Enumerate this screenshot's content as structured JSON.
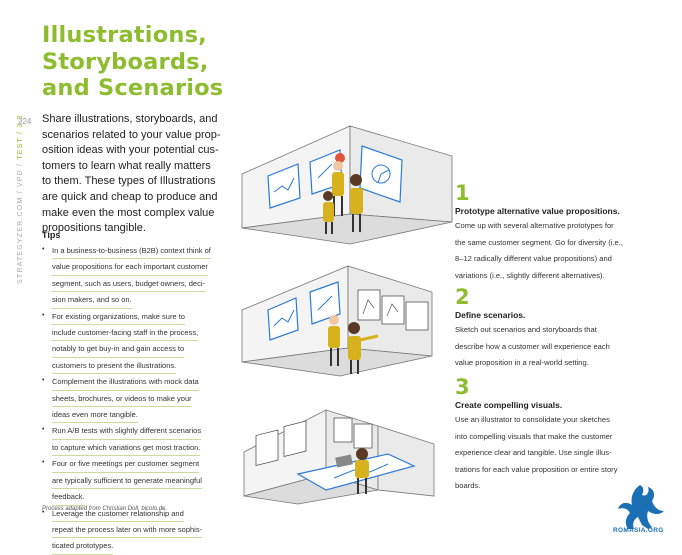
{
  "title_lines": [
    "Illustrations,",
    "Storyboards,",
    "and Scenarios"
  ],
  "page_number": "224",
  "side_label": {
    "prefix": "STRATEGYZER.COM / VPD / ",
    "highlight": "TEST / 3.3"
  },
  "intro_lines": [
    "Share illustrations, storyboards, and",
    "scenarios related to your value prop-",
    "osition ideas with your potential cus-",
    "tomers to learn what really matters",
    "to them. These types of Illustrations",
    "are quick and cheap to produce and",
    "make even the most complex value",
    "propositions tangible."
  ],
  "tips_title": "Tips",
  "tips": [
    [
      "In a business-to-business (B2B) context think of",
      "value propositions for each important customer",
      "segment, such as users, budget owners, deci-",
      "sion makers, and so on."
    ],
    [
      "For existing organizations, make sure to",
      "include customer-facing staff in the process,",
      "notably to get buy-in and gain access to",
      "customers to present the illustrations."
    ],
    [
      "Complement the illustrations with mock data",
      "sheets, brochures, or videos to make your",
      "ideas even more tangible."
    ],
    [
      "Run A/B tests with slightly different scenarios",
      "to capture which variations get most traction."
    ],
    [
      "Four or five meetings per customer segment",
      "are typically sufficient to generate meaningful",
      "feedback."
    ],
    [
      "Leverage the customer relationship and",
      "repeat the process later on with more sophis-",
      "ticated prototypes."
    ]
  ],
  "footnote": "Process adapted from Christian Doll, bicolo.de.",
  "steps": [
    {
      "number": "1",
      "heading": "Prototype alternative value propositions.",
      "body_lines": [
        "Come up with several alternative prototypes for",
        "the same customer segment. Go for diversity (i.e.,",
        "8–12 radically different value propositions) and",
        "variations (i.e., slightly different alternatives)."
      ]
    },
    {
      "number": "2",
      "heading": "Define scenarios.",
      "body_lines": [
        "Sketch out scenarios and storyboards that",
        "describe how a customer will experience each",
        "value proposition in a real-world setting."
      ]
    },
    {
      "number": "3",
      "heading": "Create compelling visuals.",
      "body_lines": [
        "Use an illustrator to consolidate your sketches",
        "into compelling visuals that make the customer",
        "experience clear and tangible. Use single illus-",
        "trations for each value proposition or entire story",
        "boards."
      ]
    }
  ],
  "logo_text": "ROMASIA.ORG",
  "colors": {
    "accent": "#8dbd2e",
    "hair": "#e2553a",
    "figure": "#d8b21c",
    "screen": "#2b7bd4",
    "logo": "#1a6fb5"
  }
}
